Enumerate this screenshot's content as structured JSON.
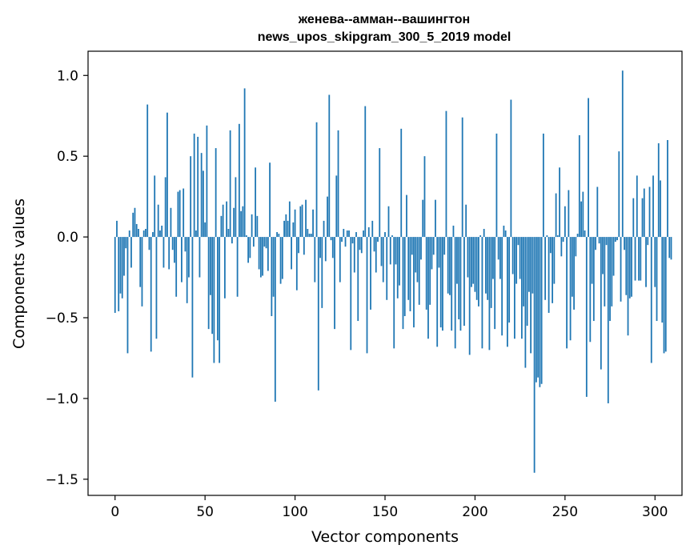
{
  "chart_data": {
    "type": "bar",
    "title_line1": "женева--амман--вашингтон",
    "title_line2": "news_upos_skipgram_300_5_2019 model",
    "xlabel": "Vector components",
    "ylabel": "Components values",
    "xlim": [
      -15,
      315
    ],
    "ylim": [
      -1.6,
      1.15
    ],
    "xticks": [
      0,
      50,
      100,
      150,
      200,
      250,
      300
    ],
    "xtick_labels": [
      "0",
      "50",
      "100",
      "150",
      "200",
      "250",
      "300"
    ],
    "yticks": [
      1.0,
      0.5,
      0.0,
      -0.5,
      -1.0,
      -1.5
    ],
    "ytick_labels": [
      "1.0",
      "0.5",
      "0.0",
      "−0.5",
      "−1.0",
      "−1.5"
    ],
    "bar_color": "#1f77b4",
    "values": [
      -0.47,
      0.1,
      -0.46,
      -0.35,
      -0.38,
      -0.24,
      -0.07,
      -0.72,
      0.04,
      -0.19,
      0.15,
      0.18,
      0.08,
      0.05,
      -0.31,
      -0.43,
      0.04,
      0.05,
      0.82,
      -0.08,
      -0.71,
      0.03,
      0.38,
      -0.63,
      0.2,
      0.04,
      0.07,
      -0.19,
      0.37,
      0.77,
      -0.2,
      0.18,
      -0.08,
      -0.16,
      -0.37,
      0.28,
      0.29,
      -0.28,
      0.3,
      -0.09,
      -0.41,
      -0.25,
      0.5,
      -0.87,
      0.64,
      0.04,
      0.62,
      -0.25,
      0.52,
      0.41,
      0.09,
      0.69,
      -0.57,
      -0.36,
      -0.6,
      -0.78,
      0.55,
      -0.64,
      -0.78,
      0.13,
      0.2,
      -0.38,
      0.22,
      0.05,
      0.66,
      -0.04,
      0.18,
      0.37,
      -0.37,
      0.7,
      0.16,
      0.19,
      0.92,
      0.01,
      -0.16,
      -0.13,
      0.14,
      -0.06,
      0.43,
      0.13,
      -0.2,
      -0.25,
      -0.24,
      -0.06,
      -0.07,
      -0.21,
      0.46,
      -0.49,
      -0.37,
      -1.02,
      0.03,
      0.02,
      -0.29,
      -0.26,
      0.1,
      0.14,
      0.1,
      0.22,
      -0.2,
      0.09,
      0.17,
      -0.33,
      -0.1,
      0.19,
      0.2,
      -0.11,
      0.23,
      0.05,
      0.02,
      0.02,
      0.17,
      -0.28,
      0.71,
      -0.95,
      -0.13,
      -0.44,
      0.1,
      -0.15,
      0.25,
      0.88,
      -0.02,
      -0.13,
      -0.57,
      0.38,
      0.66,
      -0.28,
      -0.03,
      0.05,
      -0.06,
      0.04,
      0.04,
      -0.7,
      -0.04,
      -0.22,
      0.03,
      -0.52,
      -0.08,
      -0.1,
      0.04,
      0.81,
      -0.72,
      0.06,
      -0.45,
      0.1,
      -0.09,
      -0.22,
      -0.03,
      0.55,
      -0.18,
      -0.28,
      0.03,
      -0.39,
      0.19,
      -0.17,
      0.01,
      -0.69,
      -0.17,
      -0.38,
      -0.3,
      0.67,
      -0.57,
      -0.49,
      0.26,
      -0.39,
      -0.46,
      -0.11,
      -0.56,
      -0.22,
      -0.28,
      -0.42,
      -0.14,
      0.23,
      0.5,
      -0.45,
      -0.63,
      -0.42,
      -0.2,
      -0.11,
      0.23,
      -0.68,
      -0.19,
      -0.56,
      -0.58,
      -0.11,
      0.78,
      -0.35,
      -0.36,
      -0.58,
      0.07,
      -0.69,
      -0.29,
      -0.51,
      -0.58,
      0.74,
      -0.55,
      0.2,
      -0.25,
      -0.73,
      -0.31,
      -0.29,
      -0.34,
      -0.39,
      -0.43,
      0.01,
      -0.69,
      0.05,
      -0.35,
      -0.39,
      -0.7,
      -0.44,
      -0.26,
      -0.57,
      0.64,
      -0.14,
      -0.26,
      -0.61,
      0.07,
      0.04,
      -0.68,
      -0.53,
      0.85,
      -0.23,
      -0.63,
      -0.29,
      -0.05,
      -0.26,
      -0.63,
      -0.43,
      -0.81,
      -0.55,
      -0.34,
      -0.72,
      -0.35,
      -1.46,
      -0.9,
      -0.87,
      -0.93,
      -0.91,
      0.64,
      -0.39,
      0.01,
      -0.47,
      -0.1,
      -0.41,
      -0.29,
      0.27,
      0.01,
      0.43,
      -0.12,
      -0.03,
      0.19,
      -0.69,
      0.29,
      -0.64,
      -0.37,
      -0.45,
      -0.12,
      0.02,
      0.63,
      0.22,
      0.28,
      0.04,
      -0.99,
      0.86,
      -0.65,
      -0.29,
      -0.52,
      -0.08,
      0.31,
      -0.04,
      -0.82,
      -0.23,
      -0.43,
      -0.05,
      -1.03,
      -0.52,
      -0.43,
      -0.24,
      -0.03,
      -0.02,
      0.53,
      -0.4,
      1.03,
      -0.08,
      -0.36,
      -0.61,
      -0.38,
      -0.37,
      0.24,
      -0.27,
      0.38,
      -0.27,
      -0.27,
      0.24,
      0.3,
      -0.31,
      -0.05,
      0.31,
      -0.78,
      0.38,
      -0.31,
      -0.52,
      0.58,
      0.35,
      -0.53,
      -0.72,
      -0.71,
      0.6,
      -0.13,
      -0.14
    ]
  }
}
